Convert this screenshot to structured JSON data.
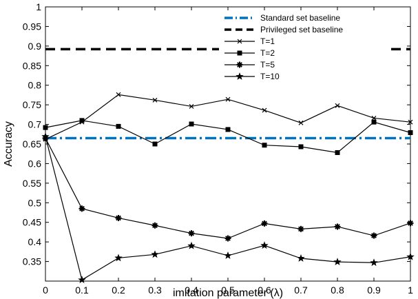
{
  "chart_data": {
    "type": "line",
    "xlabel": "imitation parameter (λ)",
    "ylabel": "Accuracy",
    "xlim": [
      0,
      1
    ],
    "ylim": [
      0.3,
      1.0
    ],
    "x_ticks": [
      "0",
      "0.1",
      "0.2",
      "0.3",
      "0.4",
      "0.5",
      "0.6",
      "0.7",
      "0.8",
      "0.9",
      "1"
    ],
    "y_ticks": [
      "0.35",
      "0.4",
      "0.45",
      "0.5",
      "0.55",
      "0.6",
      "0.65",
      "0.7",
      "0.75",
      "0.8",
      "0.85",
      "0.9",
      "0.95",
      "1"
    ],
    "grid": false,
    "legend_position": "top-right",
    "x": [
      0,
      0.1,
      0.2,
      0.3,
      0.4,
      0.5,
      0.6,
      0.7,
      0.8,
      0.9,
      1.0
    ],
    "baselines": [
      {
        "name": "Standard set baseline",
        "value": 0.665,
        "color": "#0072BD",
        "style": "dash-dot"
      },
      {
        "name": "Privileged set baseline",
        "value": 0.892,
        "color": "#000000",
        "style": "dashed"
      }
    ],
    "series": [
      {
        "name": "T=1",
        "marker": "x",
        "values": [
          0.662,
          0.706,
          0.776,
          0.762,
          0.746,
          0.764,
          0.736,
          0.704,
          0.748,
          0.716,
          0.706
        ]
      },
      {
        "name": "T=2",
        "marker": "square",
        "values": [
          0.692,
          0.71,
          0.695,
          0.65,
          0.701,
          0.687,
          0.647,
          0.643,
          0.628,
          0.706,
          0.679
        ]
      },
      {
        "name": "T=5",
        "marker": "asterisk",
        "values": [
          0.665,
          0.485,
          0.461,
          0.442,
          0.422,
          0.409,
          0.447,
          0.433,
          0.439,
          0.416,
          0.448
        ]
      },
      {
        "name": "T=10",
        "marker": "star",
        "values": [
          0.669,
          0.303,
          0.359,
          0.368,
          0.39,
          0.365,
          0.391,
          0.358,
          0.349,
          0.347,
          0.362
        ]
      }
    ]
  }
}
